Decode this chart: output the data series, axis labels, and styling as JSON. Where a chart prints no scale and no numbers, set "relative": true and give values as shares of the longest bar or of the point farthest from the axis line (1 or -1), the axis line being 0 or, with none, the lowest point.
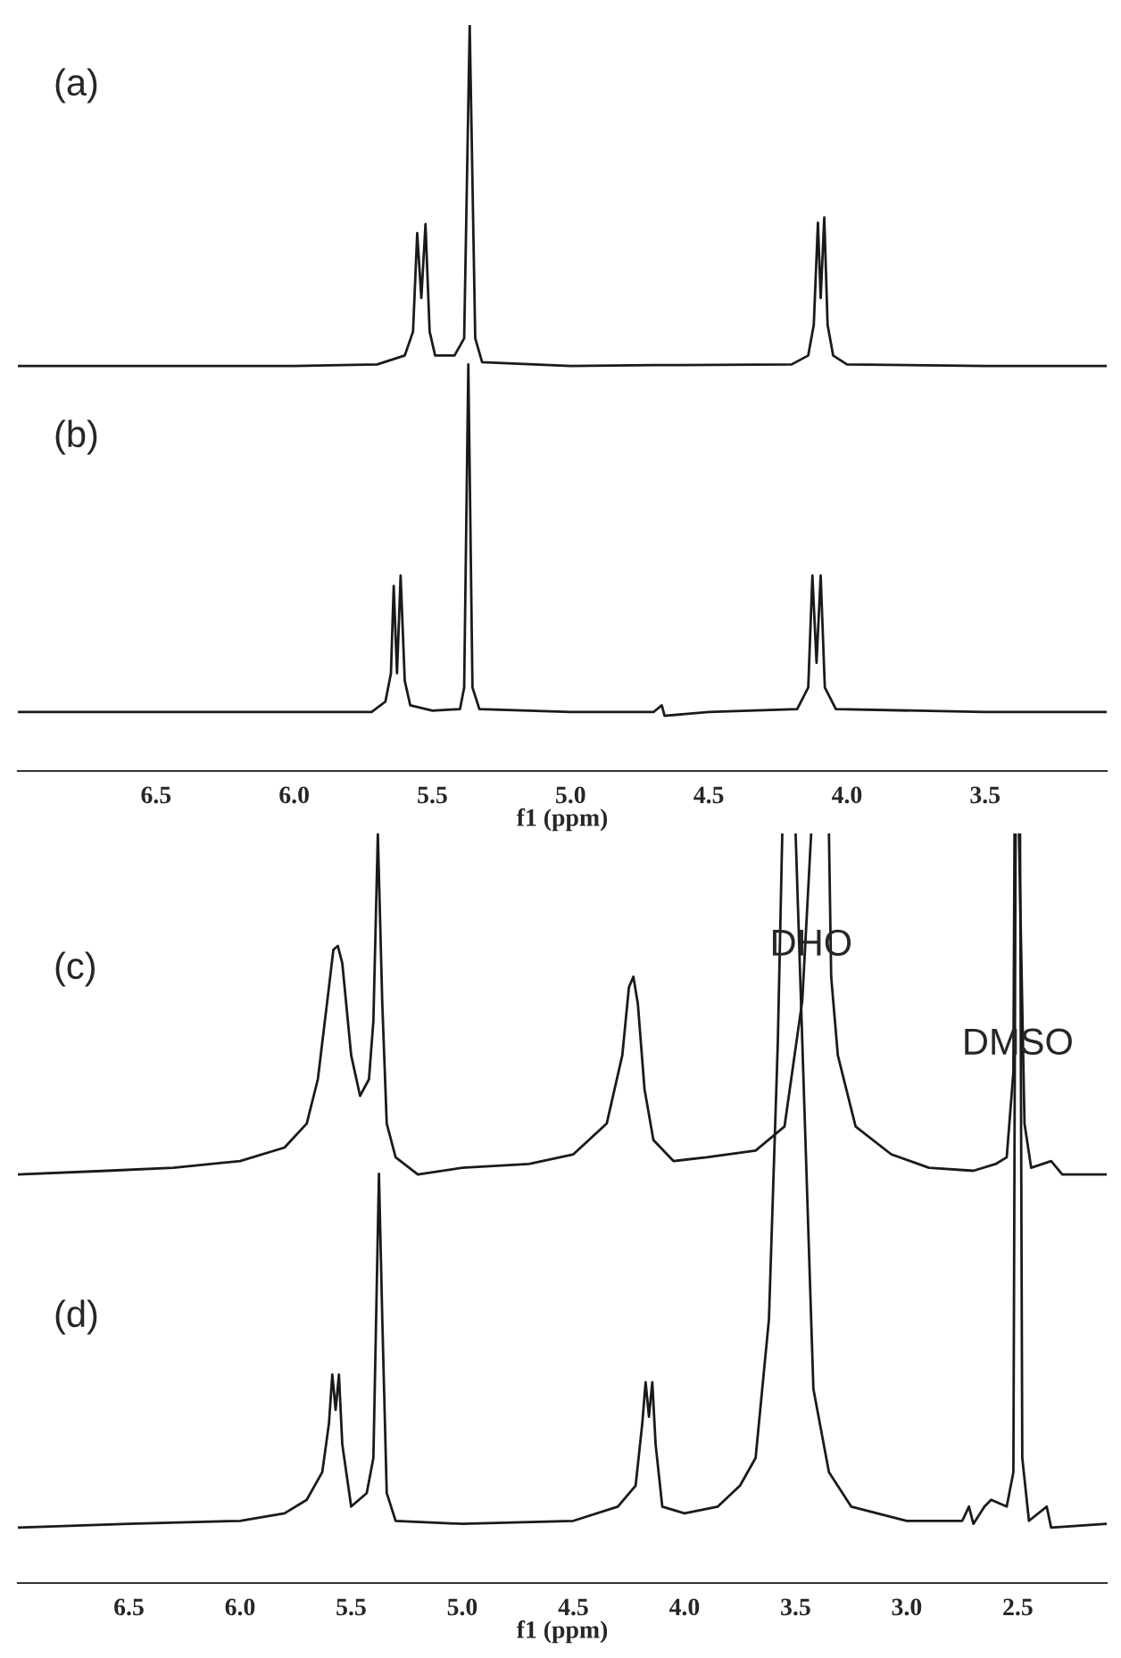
{
  "chart_data": [
    {
      "type": "line",
      "relative": true,
      "xlim": [
        7.0,
        3.06
      ],
      "xticks": [
        6.5,
        {
          "value": 6,
          "label": "6.0"
        },
        5.5,
        {
          "value": 5,
          "label": "5.0"
        },
        4.5,
        {
          "value": 4,
          "label": "4.0"
        },
        3.5
      ],
      "xlabel": "f1 (ppm)",
      "annotations": [
        "(a)",
        "(b)"
      ],
      "series": [
        {
          "color": "#1a1a1a",
          "x": [
            7.0,
            6.0,
            5.7,
            5.6,
            5.57,
            5.555,
            5.54,
            5.525,
            5.51,
            5.49,
            5.42,
            5.385,
            5.365,
            5.345,
            5.32,
            5.0,
            4.7,
            4.2,
            4.14,
            4.12,
            4.105,
            4.095,
            4.082,
            4.07,
            4.05,
            4.0,
            3.5,
            3.06
          ],
          "values": [
            0.543,
            0.543,
            0.545,
            0.557,
            0.589,
            0.721,
            0.634,
            0.733,
            0.589,
            0.557,
            0.557,
            0.58,
            1.0,
            0.58,
            0.548,
            0.543,
            0.544,
            0.545,
            0.557,
            0.598,
            0.735,
            0.634,
            0.742,
            0.598,
            0.557,
            0.545,
            0.543,
            0.543
          ]
        },
        {
          "color": "#1a1a1a",
          "x": [
            7.0,
            6.0,
            5.72,
            5.67,
            5.65,
            5.64,
            5.628,
            5.615,
            5.6,
            5.58,
            5.5,
            5.4,
            5.385,
            5.37,
            5.355,
            5.33,
            5.0,
            4.7,
            4.67,
            4.66,
            4.5,
            4.18,
            4.14,
            4.125,
            4.11,
            4.095,
            4.08,
            4.04,
            3.5,
            3.06
          ],
          "values": [
            0.079,
            0.079,
            0.079,
            0.093,
            0.131,
            0.248,
            0.131,
            0.262,
            0.121,
            0.088,
            0.081,
            0.083,
            0.112,
            0.545,
            0.112,
            0.083,
            0.079,
            0.079,
            0.088,
            0.074,
            0.079,
            0.083,
            0.112,
            0.262,
            0.145,
            0.262,
            0.112,
            0.083,
            0.079,
            0.079
          ]
        }
      ]
    },
    {
      "type": "line",
      "relative": true,
      "xlim": [
        7.0,
        2.1
      ],
      "xticks": [
        6.5,
        {
          "value": 6,
          "label": "6.0"
        },
        5.5,
        {
          "value": 5,
          "label": "5.0"
        },
        4.5,
        {
          "value": 4,
          "label": "4.0"
        },
        3.5,
        {
          "value": 3,
          "label": "3.0"
        },
        2.5
      ],
      "xlabel": "f1 (ppm)",
      "annotations": [
        "(c)",
        "(d)",
        {
          "text": "DHO",
          "x": 3.43,
          "y": 0.85
        },
        {
          "text": "DMSO",
          "x": 2.5,
          "y": 0.718
        }
      ],
      "series": [
        {
          "color": "#1a1a1a",
          "x": [
            7.0,
            6.6,
            6.3,
            6.0,
            5.8,
            5.7,
            5.65,
            5.6,
            5.58,
            5.56,
            5.54,
            5.5,
            5.46,
            5.42,
            5.4,
            5.38,
            5.36,
            5.34,
            5.3,
            5.2,
            5.0,
            4.7,
            4.5,
            4.35,
            4.28,
            4.25,
            4.23,
            4.21,
            4.18,
            4.14,
            4.05,
            3.9,
            3.68,
            3.55,
            3.47,
            3.43,
            3.39,
            3.35,
            3.34,
            3.31,
            3.23,
            3.07,
            2.9,
            2.7,
            2.6,
            2.55,
            2.52,
            2.515,
            2.5,
            2.495,
            2.47,
            2.44,
            2.35,
            2.3,
            2.1
          ],
          "values": [
            0.545,
            0.55,
            0.554,
            0.563,
            0.581,
            0.613,
            0.672,
            0.795,
            0.845,
            0.85,
            0.827,
            0.704,
            0.65,
            0.672,
            0.75,
            1.0,
            0.773,
            0.613,
            0.568,
            0.545,
            0.554,
            0.559,
            0.572,
            0.613,
            0.704,
            0.795,
            0.809,
            0.773,
            0.659,
            0.591,
            0.563,
            0.568,
            0.577,
            0.609,
            0.777,
            1.0,
            null,
            1.0,
            0.809,
            0.704,
            0.609,
            0.572,
            0.554,
            0.55,
            0.559,
            0.568,
            0.682,
            1.0,
            null,
            1.0,
            0.613,
            0.554,
            0.563,
            0.545,
            0.545
          ]
        },
        {
          "color": "#1a1a1a",
          "x": [
            7.0,
            6.5,
            6.0,
            5.8,
            5.7,
            5.63,
            5.6,
            5.585,
            5.57,
            5.555,
            5.54,
            5.5,
            5.43,
            5.4,
            5.375,
            5.36,
            5.34,
            5.3,
            5.0,
            4.5,
            4.3,
            4.22,
            4.19,
            4.175,
            4.16,
            4.145,
            4.13,
            4.1,
            4.0,
            3.85,
            3.75,
            3.68,
            3.62,
            3.58,
            3.56,
            3.53,
            3.5,
            3.46,
            3.42,
            3.35,
            3.25,
            3.0,
            2.75,
            2.72,
            2.7,
            2.65,
            2.62,
            2.55,
            2.52,
            2.51,
            2.5,
            2.49,
            2.48,
            2.45,
            2.37,
            2.35,
            2.1
          ],
          "values": [
            0.074,
            0.079,
            0.083,
            0.093,
            0.111,
            0.148,
            0.213,
            0.278,
            0.231,
            0.278,
            0.185,
            0.102,
            0.12,
            0.167,
            0.546,
            0.352,
            0.12,
            0.083,
            0.079,
            0.083,
            0.102,
            0.13,
            0.213,
            0.268,
            0.222,
            0.268,
            0.185,
            0.102,
            0.093,
            0.102,
            0.13,
            0.167,
            0.352,
            0.722,
            1.0,
            null,
            1.0,
            0.63,
            0.259,
            0.148,
            0.102,
            0.083,
            0.083,
            0.102,
            0.079,
            0.102,
            0.111,
            0.102,
            0.148,
            1.0,
            null,
            1.0,
            0.167,
            0.083,
            0.102,
            0.074,
            0.079
          ]
        }
      ]
    }
  ]
}
